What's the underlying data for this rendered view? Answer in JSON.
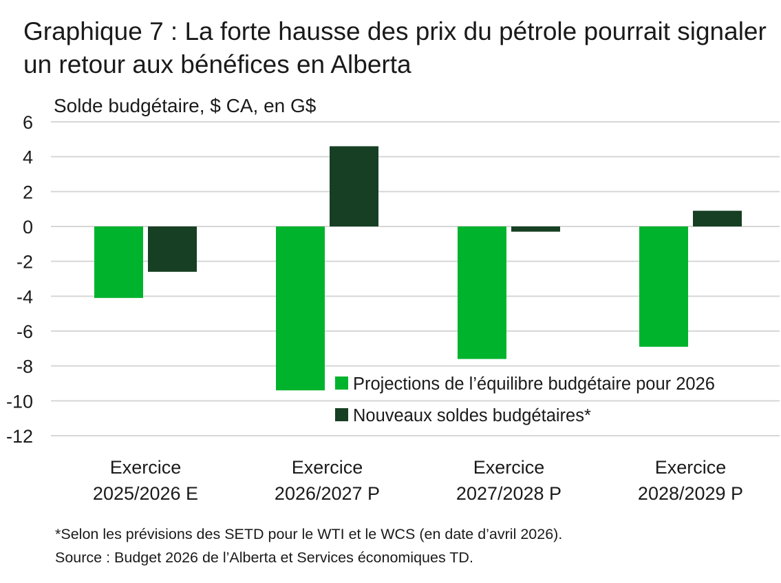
{
  "title": "Graphique 7 : La forte hausse des prix du pétrole pourrait signaler un retour aux bénéfices en Alberta",
  "chart_data": {
    "type": "bar",
    "ylabel": "Solde budgétaire, $ CA, en G$",
    "ylim": [
      -12,
      6
    ],
    "yticks": [
      6,
      4,
      2,
      0,
      -2,
      -4,
      -6,
      -8,
      -10,
      -12
    ],
    "grid": true,
    "legend_position": "bottom-right",
    "categories": [
      [
        "Exercice",
        "2025/2026 E"
      ],
      [
        "Exercice",
        "2026/2027 P"
      ],
      [
        "Exercice",
        "2027/2028 P"
      ],
      [
        "Exercice",
        "2028/2029 P"
      ]
    ],
    "series": [
      {
        "name": "Projections de l’équilibre budgétaire pour 2026",
        "color": "#00b32d",
        "values": [
          -4.1,
          -9.4,
          -7.6,
          -6.9
        ]
      },
      {
        "name": "Nouveaux soldes budgétaires*",
        "color": "#173f23",
        "values": [
          -2.6,
          4.6,
          -0.3,
          0.9
        ]
      }
    ]
  },
  "footnote": "*Selon les prévisions des SETD pour le WTI et le WCS (en date d’avril 2026).",
  "source": "Source : Budget 2026 de l’Alberta et Services économiques TD."
}
